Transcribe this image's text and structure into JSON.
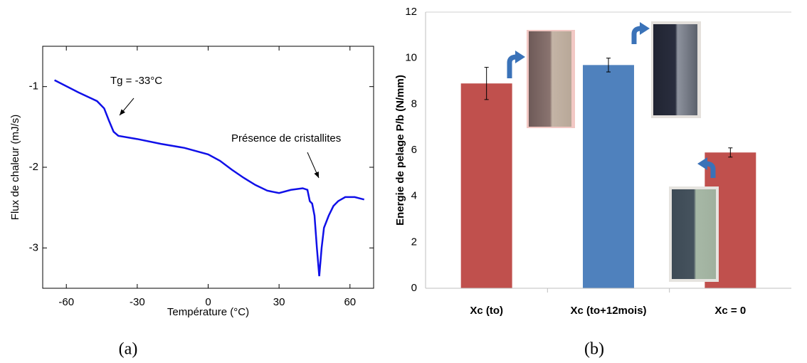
{
  "chart_data": [
    {
      "type": "line",
      "caption": "(a)",
      "x_label": "Température (°C)",
      "y_label": "Flux de chaleur (mJ/s)",
      "annotations": [
        "Tg = -33°C",
        "Présence de cristallites"
      ],
      "color": "#1010e8",
      "x": [
        -65,
        -55,
        -47,
        -44,
        -42,
        -40,
        -38,
        -30,
        -20,
        -10,
        0,
        5,
        10,
        15,
        20,
        25,
        30,
        35,
        40,
        42,
        43,
        44,
        45,
        46,
        47,
        48,
        49,
        51,
        53,
        55,
        58,
        62,
        66
      ],
      "values": [
        -0.92,
        -1.07,
        -1.18,
        -1.27,
        -1.42,
        -1.56,
        -1.61,
        -1.65,
        -1.71,
        -1.76,
        -1.84,
        -1.92,
        -2.03,
        -2.13,
        -2.22,
        -2.29,
        -2.32,
        -2.28,
        -2.26,
        -2.28,
        -2.42,
        -2.45,
        -2.6,
        -3.0,
        -3.35,
        -3.0,
        -2.75,
        -2.6,
        -2.48,
        -2.42,
        -2.37,
        -2.37,
        -2.4
      ],
      "xlim": [
        -70,
        70
      ],
      "xticks": [
        -60,
        -30,
        0,
        30,
        60
      ],
      "ylim": [
        -3.5,
        -0.5
      ],
      "yticks": [
        -1,
        -2,
        -3
      ]
    },
    {
      "type": "bar",
      "caption": "(b)",
      "y_label": "Energie de pelage P/b (N/mm)",
      "categories": [
        "Xc (to)",
        "Xc (to+12mois)",
        "Xc = 0"
      ],
      "values": [
        8.9,
        9.7,
        5.9
      ],
      "errors": [
        0.7,
        0.3,
        0.2
      ],
      "colors": [
        "#c0504d",
        "#4f81bd",
        "#c0504d"
      ],
      "ylim": [
        0,
        12
      ],
      "yticks": [
        0,
        2,
        4,
        6,
        8,
        10,
        12
      ]
    }
  ]
}
